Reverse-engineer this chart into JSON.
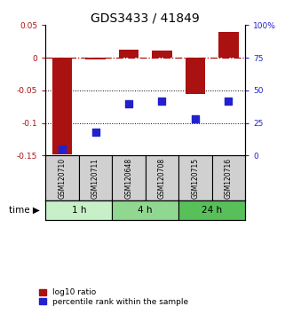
{
  "title": "GDS3433 / 41849",
  "samples": [
    "GSM120710",
    "GSM120711",
    "GSM120648",
    "GSM120708",
    "GSM120715",
    "GSM120716"
  ],
  "log10_ratio": [
    -0.148,
    -0.003,
    0.013,
    0.011,
    -0.055,
    0.04
  ],
  "percentile_rank": [
    5,
    18,
    40,
    42,
    28,
    42
  ],
  "groups": [
    {
      "label": "1 h",
      "samples": [
        0,
        1
      ],
      "color": "#c8f0c8"
    },
    {
      "label": "4 h",
      "samples": [
        2,
        3
      ],
      "color": "#90d890"
    },
    {
      "label": "24 h",
      "samples": [
        4,
        5
      ],
      "color": "#58c058"
    }
  ],
  "bar_color": "#aa1111",
  "dot_color": "#2222cc",
  "ylim_left": [
    -0.15,
    0.05
  ],
  "ylim_right": [
    0,
    100
  ],
  "yticks_left": [
    -0.15,
    -0.1,
    -0.05,
    0.0,
    0.05
  ],
  "ytick_labels_left": [
    "-0.15",
    "-0.1",
    "-0.05",
    "0",
    "0.05"
  ],
  "yticks_right": [
    0,
    25,
    50,
    75,
    100
  ],
  "ytick_labels_right": [
    "0",
    "25",
    "50",
    "75",
    "100%"
  ],
  "hline_zero": 0.0,
  "hlines_dotted": [
    -0.05,
    -0.1
  ],
  "legend_labels": [
    "log10 ratio",
    "percentile rank within the sample"
  ],
  "time_label": "time",
  "bar_width": 0.6,
  "dot_size": 35
}
